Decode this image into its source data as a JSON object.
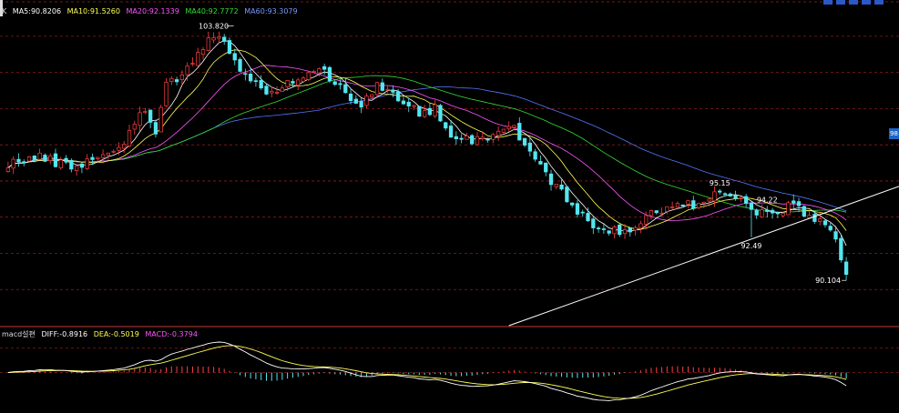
{
  "legend": {
    "period_tag": "K",
    "ma5": "MA5:90.8206",
    "ma10": "MA10:91.5260",
    "ma20": "MA20:92.1339",
    "ma40": "MA40:92.7772",
    "ma60": "MA60:93.3079"
  },
  "macd_legend": {
    "title": "macd설편",
    "diff": "DIFF:-0.8916",
    "dea": "DEA:-0.5019",
    "macd": "MACD:-0.3794"
  },
  "badge": "98",
  "colors": {
    "bg": "#000000",
    "up": "#ff4040",
    "down": "#54e6f0",
    "ma5": "#ffffff",
    "ma10": "#ffff55",
    "ma20": "#ff55ff",
    "ma40": "#33dd33",
    "ma60": "#5577ff",
    "grid": "#8b1a1a",
    "trendline": "#ffffff",
    "diff": "#ffffff",
    "dea": "#ffff55"
  },
  "chart_data": {
    "type": "candlestick",
    "price_range": [
      87.6,
      104.6
    ],
    "price_gridlines": [
      89.6,
      91.6,
      93.6,
      95.6,
      97.6,
      99.6,
      101.6,
      103.6
    ],
    "candle_count": 160,
    "close_anchors": [
      [
        0,
        96.6
      ],
      [
        6,
        96.9
      ],
      [
        12,
        96.4
      ],
      [
        18,
        97.0
      ],
      [
        22,
        97.8
      ],
      [
        26,
        99.6
      ],
      [
        28,
        98.4
      ],
      [
        30,
        101.0
      ],
      [
        34,
        101.7
      ],
      [
        38,
        103.6
      ],
      [
        41,
        103.4
      ],
      [
        44,
        101.6
      ],
      [
        49,
        100.4
      ],
      [
        52,
        100.9
      ],
      [
        56,
        101.4
      ],
      [
        60,
        101.7
      ],
      [
        63,
        100.8
      ],
      [
        67,
        99.8
      ],
      [
        70,
        100.8
      ],
      [
        73,
        100.3
      ],
      [
        76,
        99.7
      ],
      [
        78,
        99.4
      ],
      [
        81,
        99.6
      ],
      [
        84,
        98.2
      ],
      [
        88,
        97.9
      ],
      [
        92,
        98.2
      ],
      [
        96,
        98.6
      ],
      [
        99,
        97.1
      ],
      [
        104,
        95.3
      ],
      [
        108,
        93.8
      ],
      [
        112,
        93.1
      ],
      [
        116,
        92.7
      ],
      [
        119,
        93.0
      ],
      [
        122,
        93.8
      ],
      [
        126,
        94.2
      ],
      [
        130,
        94.3
      ],
      [
        133,
        94.8
      ],
      [
        136,
        95.0
      ],
      [
        139,
        94.5
      ],
      [
        142,
        93.8
      ],
      [
        145,
        93.8
      ],
      [
        148,
        94.2
      ],
      [
        150,
        94.0
      ],
      [
        153,
        93.6
      ],
      [
        155,
        93.1
      ],
      [
        157,
        92.4
      ],
      [
        159,
        90.6
      ]
    ],
    "annotations": [
      {
        "label": "103.820",
        "index": 39,
        "price": 103.82,
        "position": "above"
      },
      {
        "label": "95.15",
        "index": 135,
        "price": 95.15,
        "position": "above"
      },
      {
        "label": "94.22",
        "index": 144,
        "price": 94.22,
        "position": "above"
      },
      {
        "label": "92.49",
        "index": 141,
        "price": 92.49,
        "position": "below"
      },
      {
        "label": "90.104",
        "index": 159,
        "price": 90.104,
        "position": "left"
      }
    ],
    "trendline": {
      "from": {
        "index": 95,
        "price": 87.6
      },
      "to": {
        "index": 170,
        "price": 95.3
      }
    },
    "moving_averages": [
      "MA5",
      "MA10",
      "MA20",
      "MA40",
      "MA60"
    ],
    "macd": {
      "range": [
        -1.4,
        1.4
      ],
      "gridlines": [
        1.0,
        0.0
      ],
      "series": [
        "DIFF",
        "DEA",
        "MACD"
      ]
    }
  }
}
